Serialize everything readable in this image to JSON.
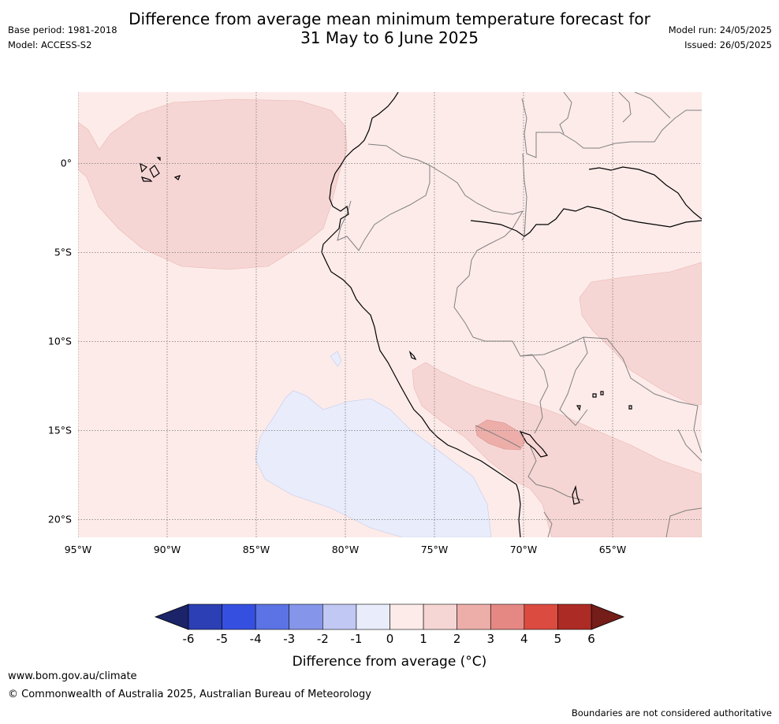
{
  "title": {
    "line1": "Difference from average mean minimum temperature forecast for",
    "line2": "31 May to 6 June 2025"
  },
  "meta": {
    "base_period": "Base period: 1981-2018",
    "model": "Model: ACCESS-S2",
    "model_run": "Model run: 24/05/2025",
    "issued": "Issued: 26/05/2025"
  },
  "map": {
    "lon_range": [
      -95,
      -60
    ],
    "lat_range": [
      -21,
      4
    ],
    "lon_ticks": [
      {
        "value": -95,
        "label": "95°W"
      },
      {
        "value": -90,
        "label": "90°W"
      },
      {
        "value": -85,
        "label": "85°W"
      },
      {
        "value": -80,
        "label": "80°W"
      },
      {
        "value": -75,
        "label": "75°W"
      },
      {
        "value": -70,
        "label": "70°W"
      },
      {
        "value": -65,
        "label": "65°W"
      }
    ],
    "lat_ticks": [
      {
        "value": 0,
        "label": "0°"
      },
      {
        "value": -5,
        "label": "5°S"
      },
      {
        "value": -10,
        "label": "10°S"
      },
      {
        "value": -15,
        "label": "15°S"
      },
      {
        "value": -20,
        "label": "20°S"
      }
    ],
    "background_class": "0 to 1",
    "gridlines": true
  },
  "colorbar": {
    "title": "Difference from average (°C)",
    "ticks": [
      "-6",
      "-5",
      "-4",
      "-3",
      "-2",
      "-1",
      "0",
      "1",
      "2",
      "3",
      "4",
      "5",
      "6"
    ],
    "colors": [
      "#282f9f",
      "#2c3fb4",
      "#3550e0",
      "#5c73e5",
      "#8595ea",
      "#c1c8f3",
      "#e9ecfb",
      "#fcebe9",
      "#f6d6d4",
      "#edaeaa",
      "#e58883",
      "#db4b40",
      "#ac2b24"
    ],
    "extend_low_color": "#1b2468",
    "extend_high_color": "#741d19"
  },
  "footer": {
    "url": "www.bom.gov.au/climate",
    "copyright": "© Commonwealth of Australia 2025, Australian Bureau of Meteorology",
    "note": "Boundaries are not considered authoritative"
  }
}
